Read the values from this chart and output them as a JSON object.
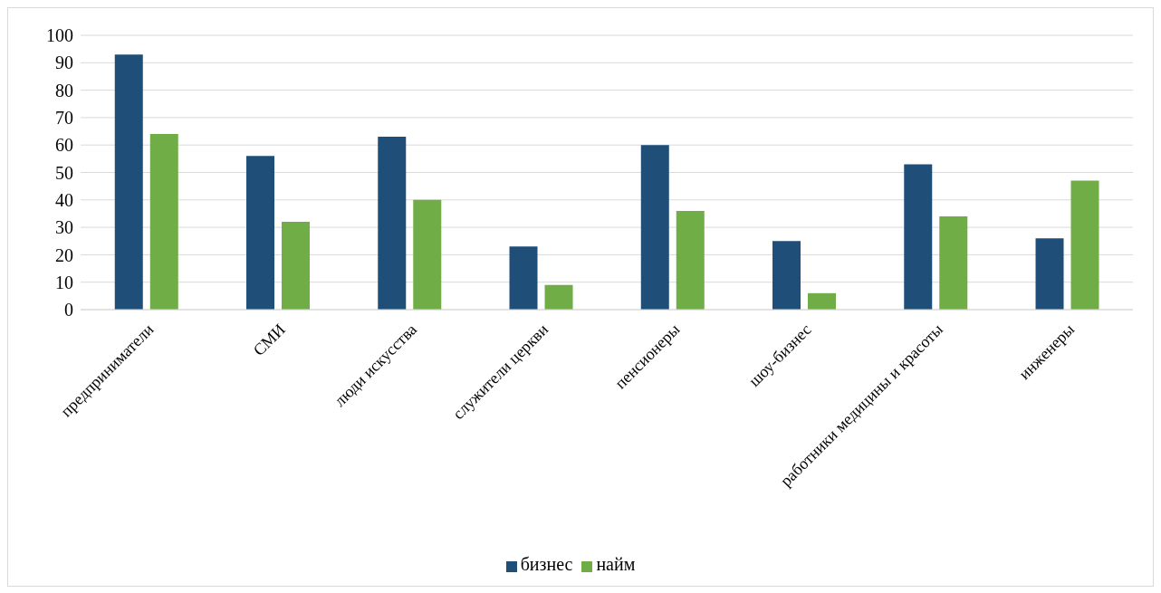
{
  "chart_data": {
    "type": "bar",
    "categories": [
      "предприниматели",
      "СМИ",
      "люди искусства",
      "служители церкви",
      "пенсионеры",
      "шоу-бизнес",
      "работники медицины и красоты",
      "инженеры"
    ],
    "series": [
      {
        "name": "бизнес",
        "color": "#1f4e79",
        "values": [
          93,
          56,
          63,
          23,
          60,
          25,
          53,
          26
        ]
      },
      {
        "name": "найм",
        "color": "#70ad47",
        "values": [
          64,
          32,
          40,
          9,
          36,
          6,
          34,
          47
        ]
      }
    ],
    "ylim": [
      0,
      100
    ],
    "yticks": [
      0,
      10,
      20,
      30,
      40,
      50,
      60,
      70,
      80,
      90,
      100
    ],
    "grid": "y",
    "legend": "bottom"
  }
}
